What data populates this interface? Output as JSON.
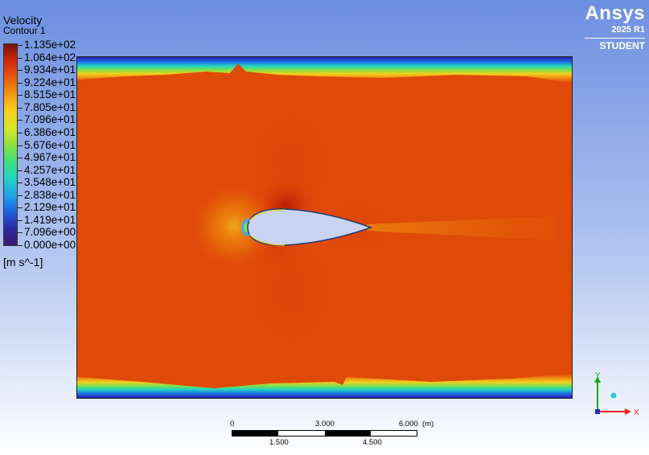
{
  "legend": {
    "title": "Velocity",
    "subtitle": "Contour 1",
    "ticks": [
      "1.135e+02",
      "1.064e+02",
      "9.934e+01",
      "9.224e+01",
      "8.515e+01",
      "7.805e+01",
      "7.096e+01",
      "6.386e+01",
      "5.676e+01",
      "4.967e+01",
      "4.257e+01",
      "3.548e+01",
      "2.838e+01",
      "2.129e+01",
      "1.419e+01",
      "7.096e+00",
      "0.000e+00"
    ],
    "units": "[m s^-1]",
    "colors": [
      "#7a1010",
      "#d12a06",
      "#e85a08",
      "#f39a10",
      "#f7d01c",
      "#d9e52a",
      "#90e040",
      "#3ee07c",
      "#22d6c0",
      "#21a6e8",
      "#2060e0",
      "#2a2aa0",
      "#3a1a6a"
    ]
  },
  "logo": {
    "brand": "Ansys",
    "version": "2025 R1",
    "edition": "STUDENT"
  },
  "scale_bar": {
    "top_labels": [
      "0",
      "3.000",
      "6.000",
      "(m)"
    ],
    "bottom_labels": [
      "1.500",
      "4.500"
    ]
  },
  "axes_triad": {
    "x_label": "X",
    "y_label": "Y",
    "x_color": "#e82020",
    "y_color": "#18a818",
    "z_color": "#20d0d0"
  },
  "contour_colors": {
    "freestream": "#e04a08",
    "stagnation": "#4aa8e8",
    "boundary_low": "#1a6ee6",
    "airfoil_fill": "#c8d4f2"
  }
}
